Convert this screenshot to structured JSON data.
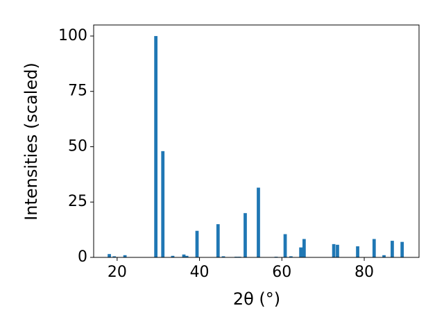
{
  "chart_data": {
    "type": "bar",
    "xlabel": "2θ (°)",
    "ylabel": "Intensities (scaled)",
    "color": "#1f77b4",
    "x": [
      18.1,
      19.3,
      21.9,
      29.4,
      31.1,
      33.5,
      36.2,
      36.9,
      39.4,
      44.5,
      45.8,
      48.9,
      49.7,
      51.1,
      54.3,
      58.6,
      60.8,
      62.2,
      64.6,
      65.4,
      72.6,
      73.5,
      78.4,
      82.4,
      84.8,
      86.8,
      89.2
    ],
    "values": [
      1.5,
      0.5,
      1,
      100,
      48,
      0.7,
      1.3,
      0.7,
      12,
      15,
      0.5,
      0.3,
      0.3,
      20,
      31.5,
      0.3,
      10.5,
      0.5,
      4.5,
      8.3,
      6,
      5.7,
      5,
      8.3,
      1,
      7.5,
      7
    ],
    "xlim": [
      14.3,
      93.3
    ],
    "ylim": [
      0,
      105
    ],
    "xticks": [
      20,
      40,
      60,
      80
    ],
    "yticks": [
      0,
      25,
      50,
      75,
      100
    ]
  }
}
